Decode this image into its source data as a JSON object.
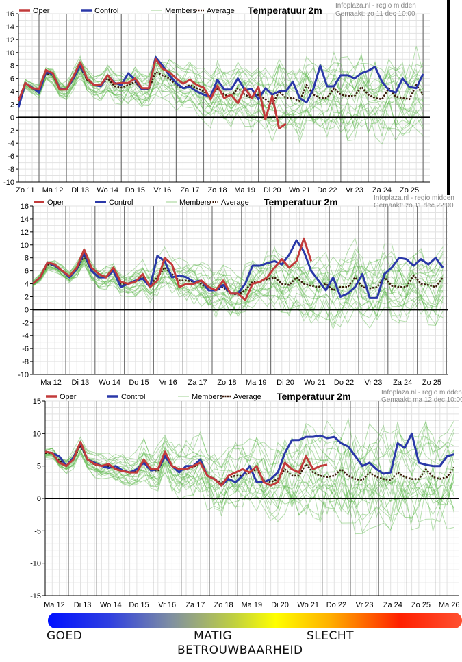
{
  "chart_data": [
    {
      "type": "line",
      "title": "Temperatuur 2m",
      "source": "Infoplaza.nl - regio midden",
      "made": "Gemaakt: zo 11 dec 10:00",
      "legend": [
        "Oper",
        "Control",
        "Members",
        "Average"
      ],
      "legend_placement": "top-left",
      "ylim": [
        -10,
        16
      ],
      "yticks": [
        -10,
        -8,
        -6,
        -4,
        -2,
        0,
        2,
        4,
        6,
        8,
        10,
        12,
        14,
        16
      ],
      "x_tick_labels": [
        "Zo 11",
        "Ma 12",
        "Di 13",
        "Wo 14",
        "Do 15",
        "Vr 16",
        "Za 17",
        "Zo 18",
        "Ma 19",
        "Di 20",
        "Wo 21",
        "Do 22",
        "Vr 23",
        "Za 24",
        "Zo 25"
      ],
      "x_step": "6h",
      "grid": true,
      "series": [
        {
          "name": "Oper",
          "color": "#c23b3b",
          "values": [
            2.5,
            5.3,
            4.5,
            4.4,
            7.3,
            6.8,
            4.3,
            4.3,
            6.3,
            8.5,
            6,
            5,
            5,
            6.5,
            5.2,
            5.3,
            5.3,
            6,
            4.5,
            4.5,
            9,
            7.5,
            7,
            6,
            5.2,
            5.8,
            5,
            4.6,
            2.8,
            4.9,
            3,
            3.5,
            2.2,
            4.5,
            3,
            4.7,
            -0.3,
            3.3,
            -1.7,
            -1
          ]
        },
        {
          "name": "Control",
          "color": "#2a38a8",
          "values": [
            1.5,
            5.3,
            4.6,
            3.8,
            7,
            6.7,
            4.5,
            4.3,
            6,
            8,
            6,
            5,
            4.8,
            6.5,
            5.3,
            5,
            6.8,
            5.8,
            4.3,
            4.5,
            9.3,
            8,
            6.5,
            5.3,
            4.5,
            4.7,
            4,
            3.5,
            3.2,
            5.8,
            4.3,
            4.3,
            6,
            4.2,
            4.4,
            2.8,
            4.5,
            3.5,
            4,
            4,
            5.5,
            3,
            2.3,
            4.4,
            8,
            4.8,
            4.8,
            6.5,
            6.5,
            6,
            6.8,
            7.2,
            7.8,
            5.5,
            4.2,
            3.8,
            6,
            4.7,
            4.5,
            6.7,
            3.8
          ]
        },
        {
          "name": "Average",
          "color": "#3a1808",
          "values": [
            2,
            5.2,
            4.5,
            4,
            6.8,
            6.5,
            4.5,
            4.3,
            6,
            7.8,
            5.8,
            5,
            4.8,
            6,
            4.8,
            4.6,
            5,
            5.5,
            4.3,
            4.3,
            7,
            6.5,
            6,
            5,
            4.5,
            5,
            4.5,
            4,
            3,
            4.5,
            3.5,
            3.2,
            4.5,
            3.5,
            3,
            3.5,
            2.8,
            2,
            4,
            3,
            3,
            2.5,
            5,
            3.5,
            3,
            3,
            4.5,
            3.5,
            3.3,
            3.3,
            4.7,
            3.5,
            3,
            2.8,
            4.5,
            3.2,
            3,
            2.8,
            5,
            3.5,
            3
          ]
        }
      ],
      "members_color": "#5cb84a"
    },
    {
      "type": "line",
      "title": "Temperatuur 2m",
      "source": "Infoplaza.nl - regio midden",
      "made": "Gemaakt: zo 11 dec 22:00",
      "legend": [
        "Oper",
        "Control",
        "Members",
        "Average"
      ],
      "legend_placement": "top-left",
      "ylim": [
        -10,
        16
      ],
      "yticks": [
        -10,
        -8,
        -6,
        -4,
        -2,
        0,
        2,
        4,
        6,
        8,
        10,
        12,
        14,
        16
      ],
      "x_tick_labels": [
        "Ma 12",
        "Di 13",
        "Wo 14",
        "Do 15",
        "Vr 16",
        "Za 17",
        "Zo 18",
        "Ma 19",
        "Di 20",
        "Wo 21",
        "Do 22",
        "Vr 23",
        "Za 24",
        "Zo 25"
      ],
      "x_step": "6h",
      "grid": true,
      "series": [
        {
          "name": "Oper",
          "color": "#c23b3b",
          "values": [
            4,
            5,
            7.3,
            7,
            6,
            5.2,
            6.5,
            9.3,
            6.5,
            5.5,
            5,
            6.5,
            4.3,
            4,
            4.3,
            5.5,
            3.5,
            4.5,
            8,
            7,
            3.5,
            4,
            4,
            4.5,
            3.5,
            3,
            4.5,
            2.5,
            2.5,
            1.5,
            4,
            4.3,
            5,
            6.5,
            7.8,
            6.5,
            7.5,
            11,
            7.5
          ]
        },
        {
          "name": "Control",
          "color": "#2a38a8",
          "values": [
            4,
            5,
            7.3,
            6.8,
            6,
            5,
            6.3,
            8.8,
            6,
            5,
            5,
            6,
            3.5,
            4,
            4.5,
            4.8,
            3.5,
            8.3,
            7.5,
            5,
            5.3,
            5,
            4.3,
            4.5,
            3,
            3,
            3.8,
            2.5,
            2.5,
            4,
            6.8,
            6.8,
            7.2,
            7.5,
            7,
            8.5,
            10.7,
            9,
            6,
            4.5,
            3,
            5,
            2,
            2.5,
            3.5,
            5.5,
            1.8,
            1.8,
            5.5,
            6.5,
            8,
            7.8,
            6.8,
            7.8,
            7,
            8,
            6.5,
            7
          ]
        },
        {
          "name": "Average",
          "color": "#3a1808",
          "values": [
            4,
            5,
            7,
            6.8,
            6,
            5.2,
            6.2,
            8.3,
            6,
            5,
            5,
            6,
            4,
            4,
            4.3,
            5,
            3.8,
            5,
            6.5,
            5.5,
            4.5,
            4.5,
            4.3,
            4,
            3,
            3,
            3.5,
            2.5,
            2.3,
            3,
            4.3,
            4.3,
            4.7,
            5,
            4,
            3.8,
            5,
            4,
            3.7,
            3.5,
            4,
            3,
            3.5,
            3.5,
            5,
            3.5,
            3.3,
            3.5,
            5,
            3.7,
            3.5,
            3.5,
            5.3,
            4,
            3.8,
            3.5,
            5,
            3.8
          ]
        }
      ],
      "members_color": "#5cb84a"
    },
    {
      "type": "line",
      "title": "Temperatuur 2m",
      "source": "Infoplaza.nl - regio midden",
      "made": "Gemaakt: ma 12 dec 10:00",
      "legend": [
        "Oper",
        "Control",
        "Members",
        "Average"
      ],
      "legend_placement": "top-left",
      "ylim": [
        -15,
        15
      ],
      "yticks": [
        -15,
        -10,
        -5,
        0,
        5,
        10,
        15
      ],
      "x_tick_labels": [
        "Ma 12",
        "Di 13",
        "Wo 14",
        "Do 15",
        "Vr 16",
        "Za 17",
        "Zo 18",
        "Ma 19",
        "Di 20",
        "Wo 21",
        "Do 22",
        "Vr 23",
        "Za 24",
        "Zo 25",
        "Ma 26"
      ],
      "x_step": "6h",
      "grid": true,
      "series": [
        {
          "name": "Oper",
          "color": "#c23b3b",
          "values": [
            7.2,
            7,
            5.5,
            5,
            6,
            8.7,
            6,
            5.3,
            5,
            5.3,
            4.5,
            4.2,
            4,
            4,
            6,
            4.5,
            4.5,
            7.2,
            5,
            4.5,
            4.5,
            5,
            5.5,
            3.5,
            3,
            2,
            3.5,
            4,
            4.5,
            4,
            5,
            2.5,
            2,
            2.5,
            5.5,
            4.5,
            4,
            6.5,
            4.5,
            5,
            5.2
          ]
        },
        {
          "name": "Control",
          "color": "#2a38a8",
          "values": [
            7.2,
            7,
            6.5,
            5,
            6.3,
            8.5,
            6,
            5.5,
            5,
            4.7,
            5,
            4.3,
            4,
            4.5,
            5.5,
            4.3,
            4.5,
            6.5,
            5,
            4,
            5,
            5,
            6,
            3.5,
            3,
            2,
            3,
            2.5,
            3.5,
            5,
            2.5,
            2.5,
            3,
            4,
            7,
            9,
            9,
            9.5,
            9.5,
            9.7,
            9.3,
            9.5,
            8.5,
            8,
            6.5,
            5,
            5.5,
            4.5,
            3.8,
            4,
            8.5,
            7.8,
            10,
            5.5,
            5.2,
            5,
            5,
            6.5,
            6.8,
            5,
            7.3
          ]
        },
        {
          "name": "Average",
          "color": "#3a1808",
          "values": [
            7,
            7,
            5.8,
            5,
            6,
            8.2,
            6,
            5.2,
            5,
            5,
            4.8,
            4.3,
            4,
            4.3,
            5.8,
            4.3,
            4.3,
            6.5,
            5,
            4.3,
            4.5,
            4.8,
            5.5,
            3.5,
            3,
            2.3,
            3.2,
            3.5,
            3.5,
            4,
            4.5,
            2.8,
            2.5,
            3,
            4.5,
            3.5,
            3.5,
            5.3,
            4,
            3.5,
            3.3,
            3.5,
            4.5,
            3.5,
            3,
            2.8,
            4,
            3.3,
            3,
            2.8,
            4,
            3.3,
            3,
            3,
            4.5,
            3.3,
            3,
            3.3,
            4.8,
            3.5
          ]
        }
      ],
      "members_color": "#5cb84a"
    }
  ],
  "reliability": {
    "good": "GOED",
    "medium": "MATIG",
    "bad": "SLECHT",
    "title": "BETROUWBAARHEID",
    "gradient_colors": [
      "#0010ff",
      "#ffff00",
      "#ff2000"
    ]
  }
}
